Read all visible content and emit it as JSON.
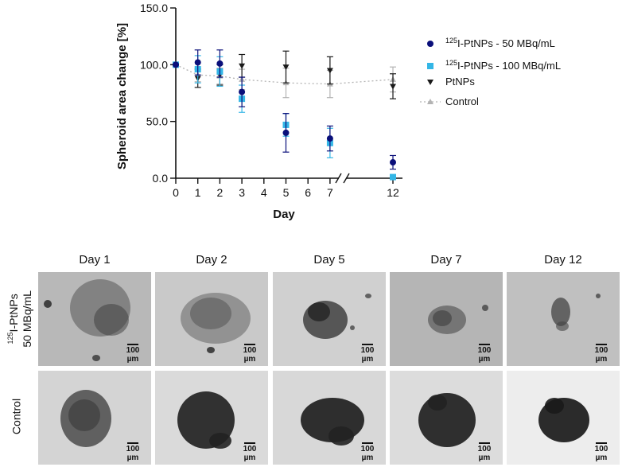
{
  "chart_data": {
    "type": "scatter",
    "ylabel": "Spheroid area change [%]",
    "xlabel": "Day",
    "ylim": [
      0,
      150
    ],
    "yticks": [
      "0.0",
      "50.0",
      "100.0",
      "150.0"
    ],
    "x_ticks_left": [
      "0",
      "1",
      "2",
      "3",
      "4",
      "5",
      "6",
      "7"
    ],
    "x_ticks_right": [
      "12"
    ],
    "axis_break": "between 7 and 12",
    "grid": false,
    "legend_position": "top-right",
    "series": [
      {
        "name_iso": "125",
        "name_main": "I-PtNPs - 50 MBq/mL",
        "color": "#0a0f7a",
        "marker": "circle",
        "x": [
          0,
          1,
          2,
          3,
          5,
          7,
          12
        ],
        "y": [
          100,
          102,
          101,
          76,
          40,
          35,
          14
        ],
        "err": [
          0,
          11,
          12,
          13,
          17,
          11,
          6
        ]
      },
      {
        "name_iso": "125",
        "name_main": "I-PtNPs - 100 MBq/mL",
        "color": "#33b6e6",
        "marker": "square",
        "x": [
          0,
          1,
          2,
          3,
          5,
          7,
          12
        ],
        "y": [
          100,
          96,
          94,
          70,
          47,
          31,
          1
        ],
        "err": [
          0,
          12,
          13,
          12,
          10,
          13,
          0
        ]
      },
      {
        "name": "PtNPs",
        "color": "#1a1a1a",
        "marker": "triangle-down",
        "x": [
          0,
          1,
          2,
          3,
          5,
          7,
          12
        ],
        "y": [
          100,
          88,
          91,
          99,
          98,
          95,
          81
        ],
        "err": [
          0,
          8,
          9,
          10,
          14,
          12,
          11
        ]
      },
      {
        "name": "Control",
        "color": "#b3b3b3",
        "marker": "triangle-up",
        "line": "dotted",
        "x": [
          0,
          1,
          2,
          3,
          5,
          7,
          12
        ],
        "y": [
          100,
          91,
          90,
          87,
          84,
          83,
          87
        ],
        "err": [
          0,
          6,
          7,
          9,
          13,
          12,
          11
        ]
      }
    ]
  },
  "panel": {
    "columns": [
      "Day 1",
      "Day 2",
      "Day 5",
      "Day 7",
      "Day 12"
    ],
    "row_treated_iso": "125",
    "row_treated_main": "I-PtNPs",
    "row_treated_line2": "50 MBq/mL",
    "row_control": "Control",
    "scale_label": "100 µm"
  }
}
